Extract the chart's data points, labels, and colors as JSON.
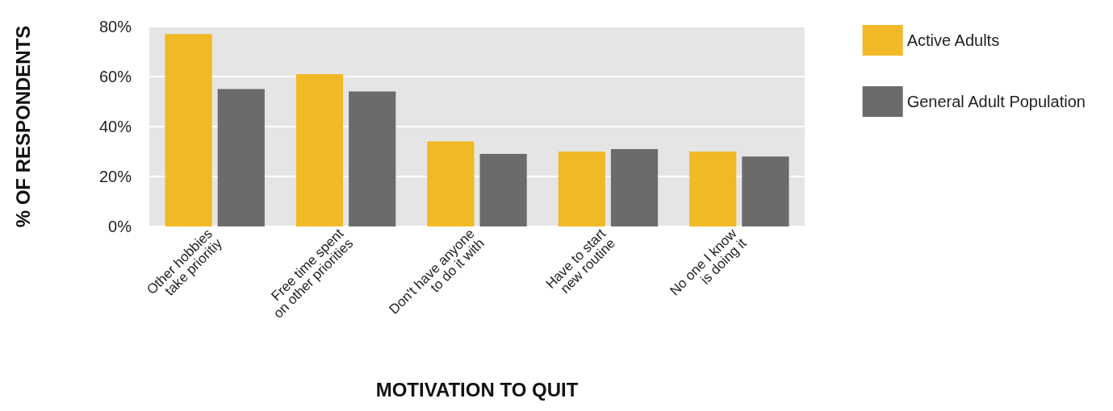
{
  "chart_data": {
    "type": "bar",
    "xlabel": "MOTIVATION TO QUIT",
    "ylabel": "% OF RESPONDENTS",
    "categories": [
      "Other hobbies\ntake prioritiy",
      "Free time spent\non other priorities",
      "Don't have anyone\nto do it with",
      "Have to start\nnew routine",
      "No one I know\nis doing it"
    ],
    "series": [
      {
        "name": "Active Adults",
        "color": "#f2b926",
        "values": [
          77,
          61,
          34,
          30,
          30
        ]
      },
      {
        "name": "General Adult Population",
        "color": "#6b6b6b",
        "values": [
          55,
          54,
          29,
          31,
          28
        ]
      }
    ],
    "ylim": [
      0,
      80
    ],
    "yticks": [
      {
        "value": 0,
        "label": "0%"
      },
      {
        "value": 20,
        "label": "20%"
      },
      {
        "value": 40,
        "label": "40%"
      },
      {
        "value": 60,
        "label": "60%"
      },
      {
        "value": 80,
        "label": "80%"
      }
    ],
    "grid": "y",
    "legend": "top right"
  }
}
